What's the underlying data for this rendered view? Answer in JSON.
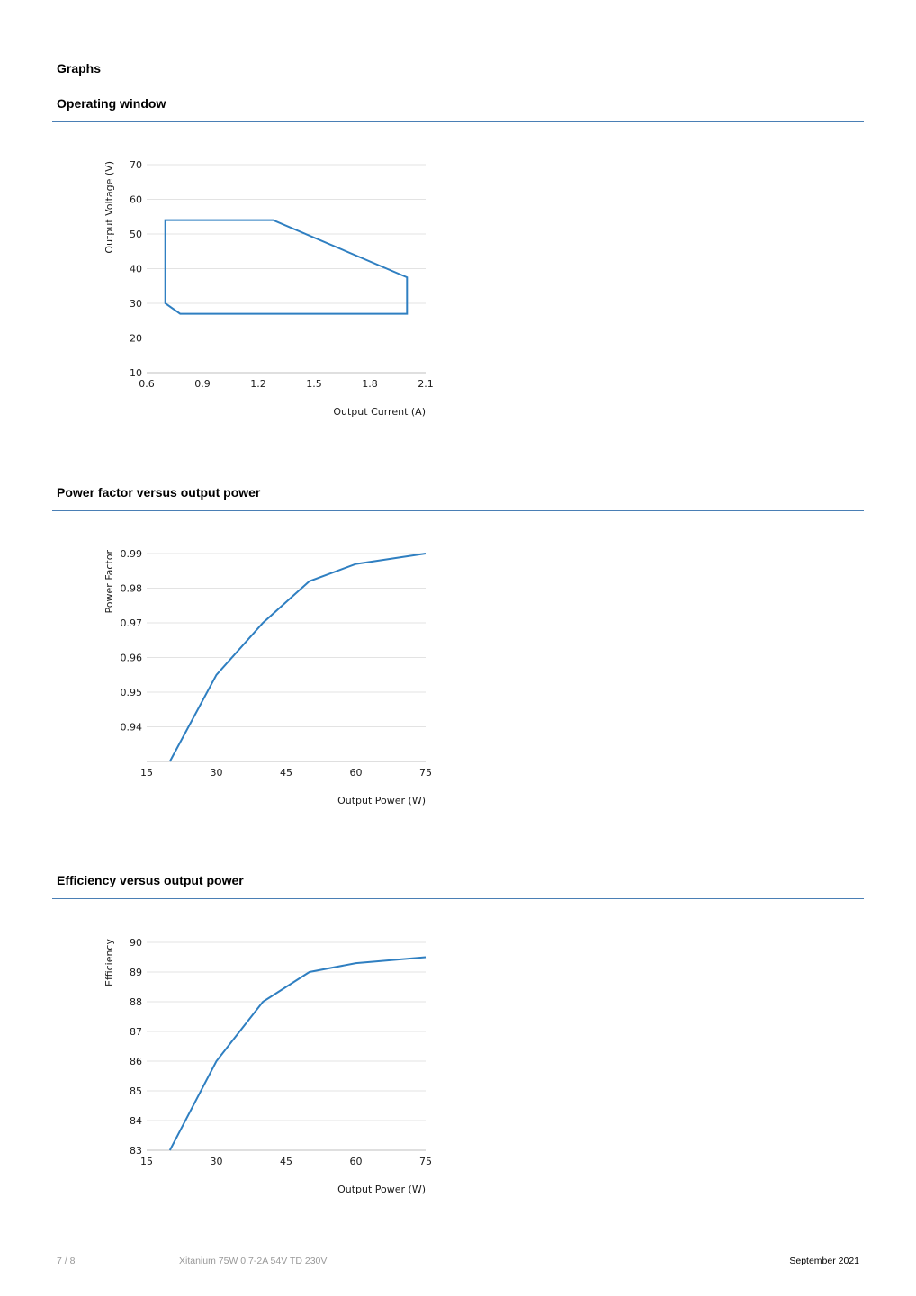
{
  "page": {
    "title": "Graphs"
  },
  "sections": [
    {
      "title": "Operating window"
    },
    {
      "title": "Power factor versus output power"
    },
    {
      "title": "Efficiency versus output power"
    }
  ],
  "chart_data": [
    {
      "type": "line",
      "xlabel": "Output Current (A)",
      "ylabel": "Output Voltage (V)",
      "xlim": [
        0.6,
        2.1
      ],
      "ylim": [
        10,
        70
      ],
      "xticks": [
        0.6,
        0.9,
        1.2,
        1.5,
        1.8,
        2.1
      ],
      "xtick_labels": [
        "0.6",
        "0.9",
        "1.2",
        "1.5",
        "1.8",
        "2.1"
      ],
      "yticks": [
        10,
        20,
        30,
        40,
        50,
        60,
        70
      ],
      "ytick_labels": [
        "10",
        "20",
        "30",
        "40",
        "50",
        "60",
        "70"
      ],
      "grid": true,
      "color": "#2f7fc1",
      "closed": true,
      "x": [
        0.7,
        1.28,
        2.0,
        2.0,
        0.78,
        0.7,
        0.7
      ],
      "y": [
        54,
        54,
        37.5,
        27,
        27,
        30,
        54
      ]
    },
    {
      "type": "line",
      "xlabel": "Output Power (W)",
      "ylabel": "Power Factor",
      "xlim": [
        15,
        75
      ],
      "ylim": [
        0.93,
        0.99
      ],
      "xticks": [
        15,
        30,
        45,
        60,
        75
      ],
      "xtick_labels": [
        "15",
        "30",
        "45",
        "60",
        "75"
      ],
      "yticks": [
        0.94,
        0.95,
        0.96,
        0.97,
        0.98,
        0.99
      ],
      "ytick_labels": [
        "0.94",
        "0.95",
        "0.96",
        "0.97",
        "0.98",
        "0.99"
      ],
      "grid": true,
      "color": "#2f7fc1",
      "closed": false,
      "x": [
        20,
        30,
        40,
        50,
        60,
        75
      ],
      "y": [
        0.93,
        0.955,
        0.97,
        0.982,
        0.987,
        0.99
      ]
    },
    {
      "type": "line",
      "xlabel": "Output Power (W)",
      "ylabel": "Efficiency",
      "xlim": [
        15,
        75
      ],
      "ylim": [
        83,
        90
      ],
      "xticks": [
        15,
        30,
        45,
        60,
        75
      ],
      "xtick_labels": [
        "15",
        "30",
        "45",
        "60",
        "75"
      ],
      "yticks": [
        83,
        84,
        85,
        86,
        87,
        88,
        89,
        90
      ],
      "ytick_labels": [
        "83",
        "84",
        "85",
        "86",
        "87",
        "88",
        "89",
        "90"
      ],
      "grid": true,
      "color": "#2f7fc1",
      "closed": false,
      "x": [
        20,
        30,
        40,
        50,
        60,
        75
      ],
      "y": [
        83,
        86,
        88,
        89,
        89.3,
        89.5
      ]
    }
  ],
  "footer": {
    "page_number": "7 / 8",
    "product": "Xitanium 75W 0.7-2A 54V TD 230V",
    "date": "September 2021"
  }
}
